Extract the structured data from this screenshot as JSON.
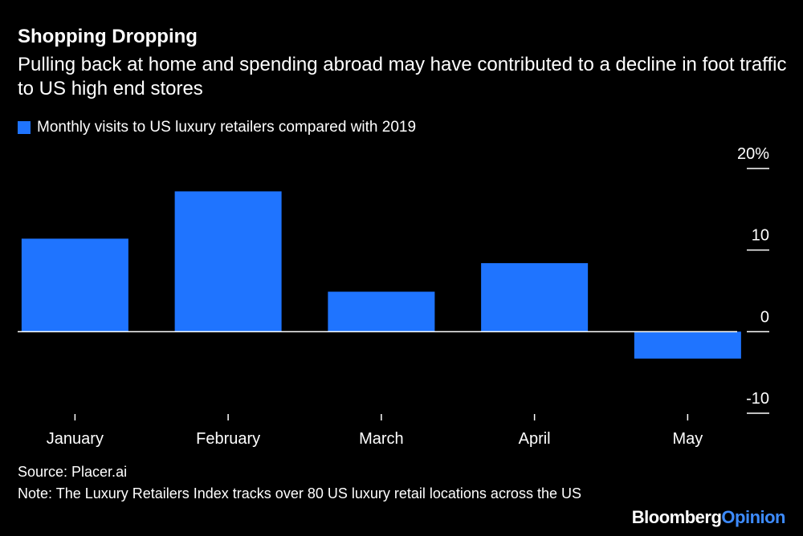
{
  "chart_data": {
    "type": "bar",
    "title": "Shopping Dropping",
    "subtitle": "Pulling back at home and spending abroad may have contributed to a decline in foot traffic to US high end stores",
    "categories": [
      "January",
      "February",
      "March",
      "April",
      "May"
    ],
    "series": [
      {
        "name": "Monthly visits to US luxury retailers compared with 2019",
        "color": "#1f74ff",
        "values": [
          11.4,
          17.2,
          4.9,
          8.4,
          -3.3
        ]
      }
    ],
    "ylim": [
      -10,
      20
    ],
    "yticks": [
      -10,
      0,
      10,
      {
        "value": 20,
        "label": "20%"
      }
    ],
    "source": "Source: Placer.ai",
    "note": "Note: The Luxury Retailers Index tracks over 80 US luxury retail locations across the US",
    "logo": [
      "Bloomberg",
      "Opinion"
    ]
  }
}
